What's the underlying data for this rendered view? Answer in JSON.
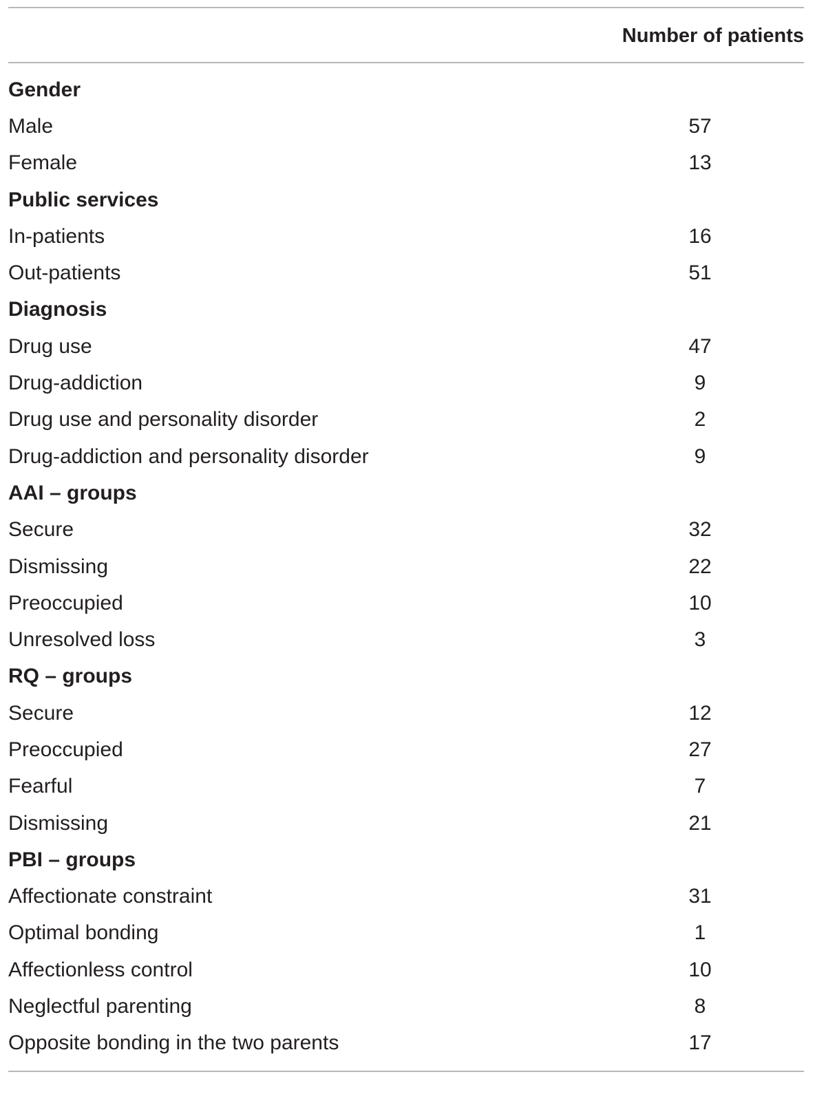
{
  "table": {
    "column_header": "Number of patients",
    "sections": [
      {
        "title": "Gender",
        "rows": [
          {
            "label": "Male",
            "value": "57"
          },
          {
            "label": "Female",
            "value": "13"
          }
        ]
      },
      {
        "title": "Public services",
        "rows": [
          {
            "label": "In-patients",
            "value": "16"
          },
          {
            "label": "Out-patients",
            "value": "51"
          }
        ]
      },
      {
        "title": "Diagnosis",
        "rows": [
          {
            "label": "Drug use",
            "value": "47"
          },
          {
            "label": "Drug-addiction",
            "value": "9"
          },
          {
            "label": "Drug use and personality disorder",
            "value": "2"
          },
          {
            "label": "Drug-addiction and personality disorder",
            "value": "9"
          }
        ]
      },
      {
        "title": "AAI – groups",
        "rows": [
          {
            "label": "Secure",
            "value": "32"
          },
          {
            "label": "Dismissing",
            "value": "22"
          },
          {
            "label": "Preoccupied",
            "value": "10"
          },
          {
            "label": "Unresolved loss",
            "value": "3"
          }
        ]
      },
      {
        "title": "RQ – groups",
        "rows": [
          {
            "label": "Secure",
            "value": "12"
          },
          {
            "label": "Preoccupied",
            "value": "27"
          },
          {
            "label": "Fearful",
            "value": "7"
          },
          {
            "label": "Dismissing",
            "value": "21"
          }
        ]
      },
      {
        "title": "PBI – groups",
        "rows": [
          {
            "label": "Affectionate constraint",
            "value": "31"
          },
          {
            "label": "Optimal bonding",
            "value": "1"
          },
          {
            "label": "Affectionless control",
            "value": "10"
          },
          {
            "label": "Neglectful parenting",
            "value": "8"
          },
          {
            "label": "Opposite bonding in the two parents",
            "value": "17"
          }
        ]
      }
    ]
  }
}
